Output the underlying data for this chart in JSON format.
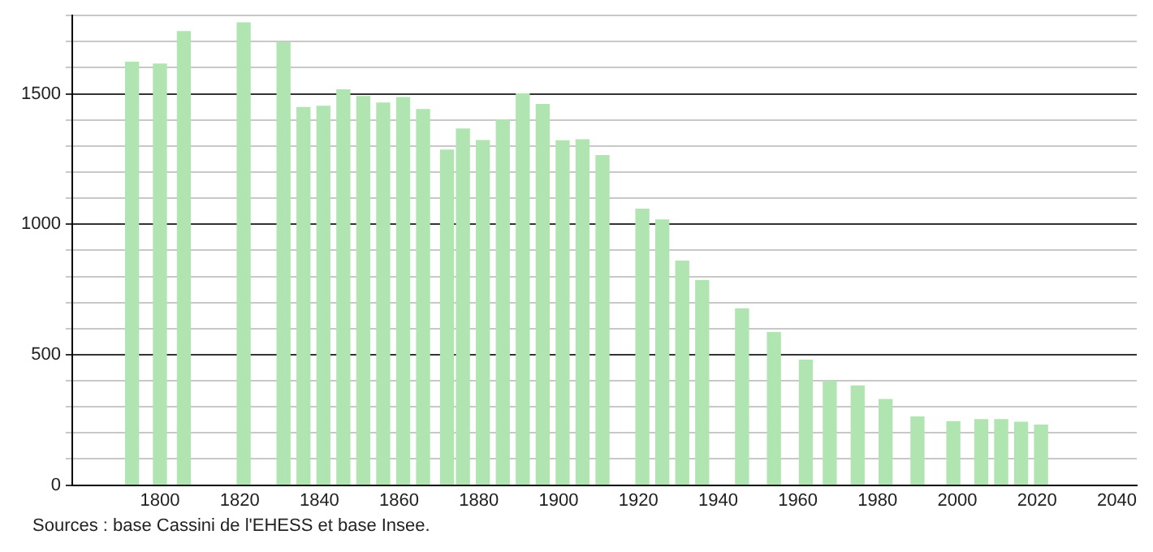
{
  "chart_data": {
    "type": "bar",
    "x": [
      1793,
      1800,
      1806,
      1821,
      1831,
      1836,
      1841,
      1846,
      1851,
      1856,
      1861,
      1866,
      1872,
      1876,
      1881,
      1886,
      1891,
      1896,
      1901,
      1906,
      1911,
      1921,
      1926,
      1931,
      1936,
      1946,
      1954,
      1962,
      1968,
      1975,
      1982,
      1990,
      1999,
      2006,
      2011,
      2016,
      2021
    ],
    "values": [
      1621,
      1614,
      1739,
      1772,
      1697,
      1448,
      1452,
      1515,
      1490,
      1465,
      1486,
      1440,
      1284,
      1365,
      1321,
      1400,
      1500,
      1459,
      1320,
      1324,
      1263,
      1058,
      1017,
      859,
      784,
      676,
      585,
      479,
      398,
      380,
      328,
      261,
      243,
      251,
      251,
      241,
      230
    ],
    "color": "#b0e4b0",
    "xlim": [
      1778,
      2045
    ],
    "xticks": [
      1800,
      1820,
      1840,
      1860,
      1880,
      1900,
      1920,
      1940,
      1960,
      1980,
      2000,
      2020,
      2040
    ],
    "ylim": [
      0,
      1800
    ],
    "yticks": [
      0,
      {
        "value": 100,
        "label": null
      },
      {
        "value": 200,
        "label": null
      },
      {
        "value": 300,
        "label": null
      },
      {
        "value": 400,
        "label": null
      },
      500,
      {
        "value": 600,
        "label": null
      },
      {
        "value": 700,
        "label": null
      },
      {
        "value": 800,
        "label": null
      },
      {
        "value": 900,
        "label": null
      },
      1000,
      {
        "value": 1100,
        "label": null
      },
      {
        "value": 1200,
        "label": null
      },
      {
        "value": 1300,
        "label": null
      },
      {
        "value": 1400,
        "label": null
      },
      1500,
      {
        "value": 1600,
        "label": null
      },
      {
        "value": 1700,
        "label": null
      },
      {
        "value": 1800,
        "label": null
      }
    ],
    "grid": "y",
    "annotations": [
      "Sources : base Cassini de l'EHESS et base Insee."
    ]
  }
}
